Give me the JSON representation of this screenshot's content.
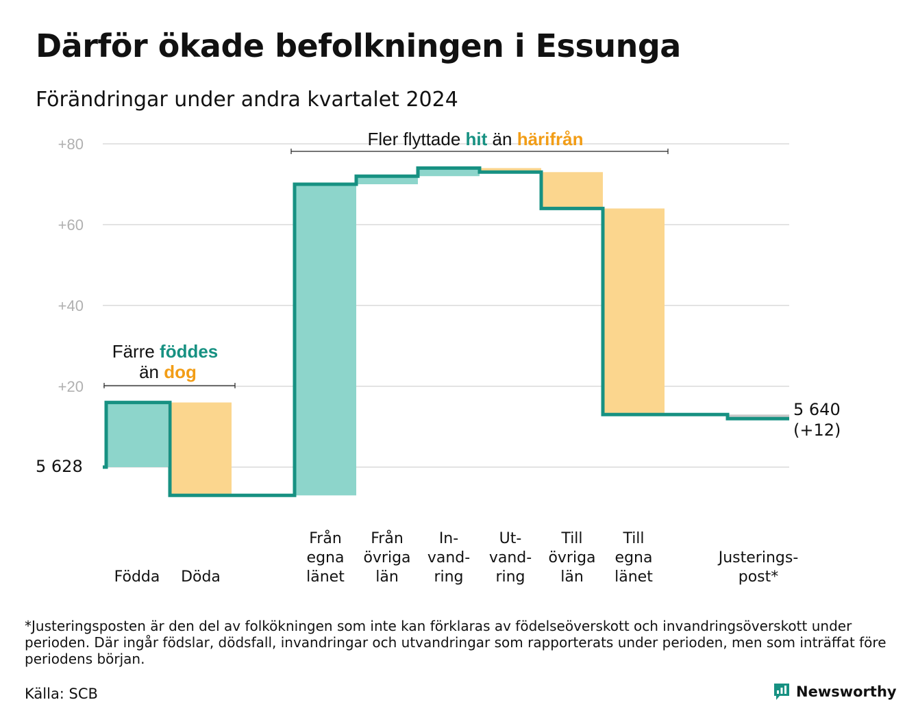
{
  "title": "Därför ökade befolkningen i Essunga",
  "subtitle": "Förändringar under andra kvartalet 2024",
  "chart_data": {
    "type": "waterfall",
    "start_value": 5628,
    "start_label": "5  628",
    "end_label_line1": "5 640",
    "end_label_line2": "(+12)",
    "ylim": [
      -8,
      82
    ],
    "yticks": [
      {
        "value": 20,
        "label": "+20"
      },
      {
        "value": 40,
        "label": "+40"
      },
      {
        "value": 60,
        "label": "+60"
      },
      {
        "value": 80,
        "label": "+80"
      }
    ],
    "colors": {
      "increase": "#8dd5cb",
      "decrease": "#fbd68e",
      "line": "#179182",
      "adjustment": "#c8c8c8",
      "grid": "#e3e3e3",
      "teal_text": "#179182",
      "orange_text": "#f29d16"
    },
    "steps": [
      {
        "label_lines": [
          "",
          "",
          "Födda"
        ],
        "delta": 16,
        "kind": "increase"
      },
      {
        "label_lines": [
          "",
          "",
          "Döda"
        ],
        "delta": -23,
        "kind": "decrease"
      },
      {
        "label_lines": [
          "Från",
          "egna",
          "länet"
        ],
        "delta": 77,
        "kind": "increase"
      },
      {
        "label_lines": [
          "Från",
          "övriga",
          "län"
        ],
        "delta": 2,
        "kind": "increase"
      },
      {
        "label_lines": [
          "In-",
          "vand-",
          "ring"
        ],
        "delta": 2,
        "kind": "increase"
      },
      {
        "label_lines": [
          "Ut-",
          "vand-",
          "ring"
        ],
        "delta": -1,
        "kind": "decrease"
      },
      {
        "label_lines": [
          "Till",
          "övriga",
          "län"
        ],
        "delta": -9,
        "kind": "decrease"
      },
      {
        "label_lines": [
          "Till",
          "egna",
          "länet"
        ],
        "delta": -51,
        "kind": "decrease"
      },
      {
        "label_lines": [
          "",
          "Justerings-",
          "post*"
        ],
        "delta": -1,
        "kind": "adjustment"
      }
    ],
    "annotations": {
      "births": {
        "prefix": "Färre ",
        "highlight1": "föddes",
        "middle": "än ",
        "highlight2": "dog"
      },
      "moves": {
        "prefix": "Fler flyttade ",
        "highlight1": "hit",
        "middle": " än ",
        "highlight2": "härifrån"
      }
    }
  },
  "footnote": "*Justeringsposten är den del av folkökningen som inte kan förklaras av födelseöverskott och invandringsöverskott under perioden. Där ingår födslar, dödsfall, invandringar och utvandringar som rapporterats under perioden, men som inträffat före periodens början.",
  "source": "Källa: SCB",
  "brand": {
    "name": "Newsworthy",
    "logo_icon": "bar-chart-speech-bubble-icon"
  }
}
